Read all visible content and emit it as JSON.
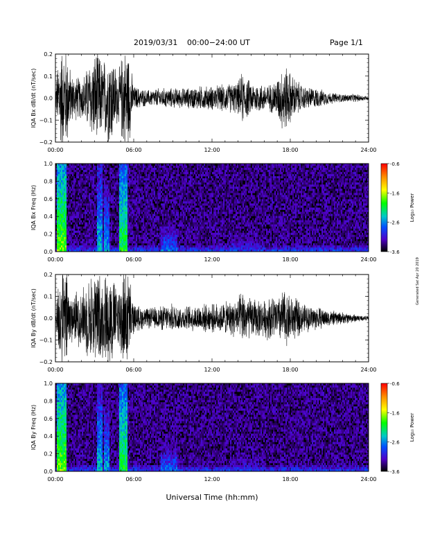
{
  "header": {
    "date": "2019/03/31",
    "range": "00:00−24:00 UT",
    "page": "Page 1/1"
  },
  "footer": {
    "xlabel": "Universal Time (hh:mm)"
  },
  "side_note": "Generated Sat Apr 20 2019",
  "colorbar": {
    "label": "Log₁₀ Power",
    "ticks": [
      "-0.6",
      "-1.6",
      "-2.6",
      "-3.6"
    ],
    "stops": [
      "#ff0000",
      "#ff8c00",
      "#ffff00",
      "#00ff00",
      "#00c8c8",
      "#0050ff",
      "#5000c8",
      "#000000"
    ]
  },
  "x_ticks": [
    "00:00",
    "06:00",
    "12:00",
    "18:00",
    "24:00"
  ],
  "chart_data": [
    {
      "type": "line",
      "ylabel": "IQA Bx dB/dt (nT/sec)",
      "ylim": [
        -0.2,
        0.2
      ],
      "yticks": [
        "0.2",
        "0.1",
        "0.0",
        "−0.1",
        "−0.2"
      ],
      "xlim_hours": [
        0,
        24
      ],
      "envelope": {
        "hour": [
          0,
          0.3,
          0.9,
          1.2,
          2,
          2.8,
          3.2,
          3.6,
          4.2,
          4.8,
          5.2,
          5.6,
          6,
          7,
          8,
          9,
          10,
          11,
          12,
          13,
          14,
          14.3,
          15,
          16,
          16.5,
          17,
          17.5,
          18,
          18.5,
          19,
          20,
          21,
          22,
          23,
          24
        ],
        "amplitude": [
          0.04,
          0.25,
          0.25,
          0.12,
          0.1,
          0.2,
          0.25,
          0.18,
          0.25,
          0.12,
          0.25,
          0.25,
          0.06,
          0.04,
          0.05,
          0.05,
          0.05,
          0.06,
          0.06,
          0.07,
          0.08,
          0.13,
          0.08,
          0.07,
          0.07,
          0.1,
          0.18,
          0.13,
          0.09,
          0.06,
          0.05,
          0.03,
          0.02,
          0.02,
          0.01
        ]
      }
    },
    {
      "type": "heatmap",
      "ylabel": "IQA Bx Freq (Hz)",
      "ylim": [
        0,
        1.0
      ],
      "yticks": [
        "1.0",
        "0.8",
        "0.6",
        "0.4",
        "0.2",
        "0.0"
      ],
      "zlim": [
        -3.6,
        -0.6
      ],
      "features": [
        {
          "hour": 0.5,
          "width_h": 0.5,
          "fmax": 1.0,
          "power": -1.8
        },
        {
          "hour": 3.4,
          "width_h": 0.2,
          "fmax": 1.0,
          "power": -2.4
        },
        {
          "hour": 3.9,
          "width_h": 0.2,
          "fmax": 0.8,
          "power": -2.5
        },
        {
          "hour": 5.2,
          "width_h": 0.4,
          "fmax": 1.0,
          "power": -2.0
        },
        {
          "hour": 8.7,
          "width_h": 1.0,
          "fmax": 0.35,
          "power": -2.7
        },
        {
          "hour": 14.5,
          "width_h": 2.0,
          "fmax": 0.3,
          "power": -3.0
        },
        {
          "hour": 20.5,
          "width_h": 2.0,
          "fmax": 0.15,
          "power": -3.1
        }
      ]
    },
    {
      "type": "line",
      "ylabel": "IQA By dB/dt (nT/sec)",
      "ylim": [
        -0.2,
        0.2
      ],
      "yticks": [
        "0.2",
        "0.1",
        "0.0",
        "−0.1",
        "−0.2"
      ],
      "xlim_hours": [
        0,
        24
      ],
      "envelope": {
        "hour": [
          0,
          0.3,
          0.9,
          1.2,
          2,
          2.8,
          3.2,
          3.6,
          4.2,
          4.8,
          5.2,
          5.6,
          6,
          7,
          8,
          9,
          10,
          11,
          12,
          13,
          14,
          14.3,
          15,
          16,
          16.5,
          17,
          17.5,
          18,
          18.5,
          19,
          20,
          21,
          22,
          23,
          24
        ],
        "amplitude": [
          0.03,
          0.25,
          0.25,
          0.12,
          0.15,
          0.22,
          0.25,
          0.2,
          0.25,
          0.15,
          0.25,
          0.25,
          0.07,
          0.05,
          0.06,
          0.07,
          0.06,
          0.07,
          0.07,
          0.08,
          0.1,
          0.14,
          0.1,
          0.09,
          0.12,
          0.1,
          0.15,
          0.12,
          0.1,
          0.07,
          0.06,
          0.04,
          0.03,
          0.02,
          0.01
        ]
      }
    },
    {
      "type": "heatmap",
      "ylabel": "IQA By Freq (Hz)",
      "ylim": [
        0,
        1.0
      ],
      "yticks": [
        "1.0",
        "0.8",
        "0.6",
        "0.4",
        "0.2",
        "0.0"
      ],
      "zlim": [
        -3.6,
        -0.6
      ],
      "features": [
        {
          "hour": 0.5,
          "width_h": 0.5,
          "fmax": 1.0,
          "power": -1.8
        },
        {
          "hour": 3.4,
          "width_h": 0.2,
          "fmax": 1.0,
          "power": -2.4
        },
        {
          "hour": 3.9,
          "width_h": 0.2,
          "fmax": 0.8,
          "power": -2.5
        },
        {
          "hour": 5.2,
          "width_h": 0.4,
          "fmax": 1.0,
          "power": -2.0
        },
        {
          "hour": 8.7,
          "width_h": 1.0,
          "fmax": 0.35,
          "power": -2.7
        },
        {
          "hour": 14.5,
          "width_h": 2.0,
          "fmax": 0.3,
          "power": -3.0
        },
        {
          "hour": 20.5,
          "width_h": 2.0,
          "fmax": 0.15,
          "power": -3.1
        }
      ]
    }
  ]
}
